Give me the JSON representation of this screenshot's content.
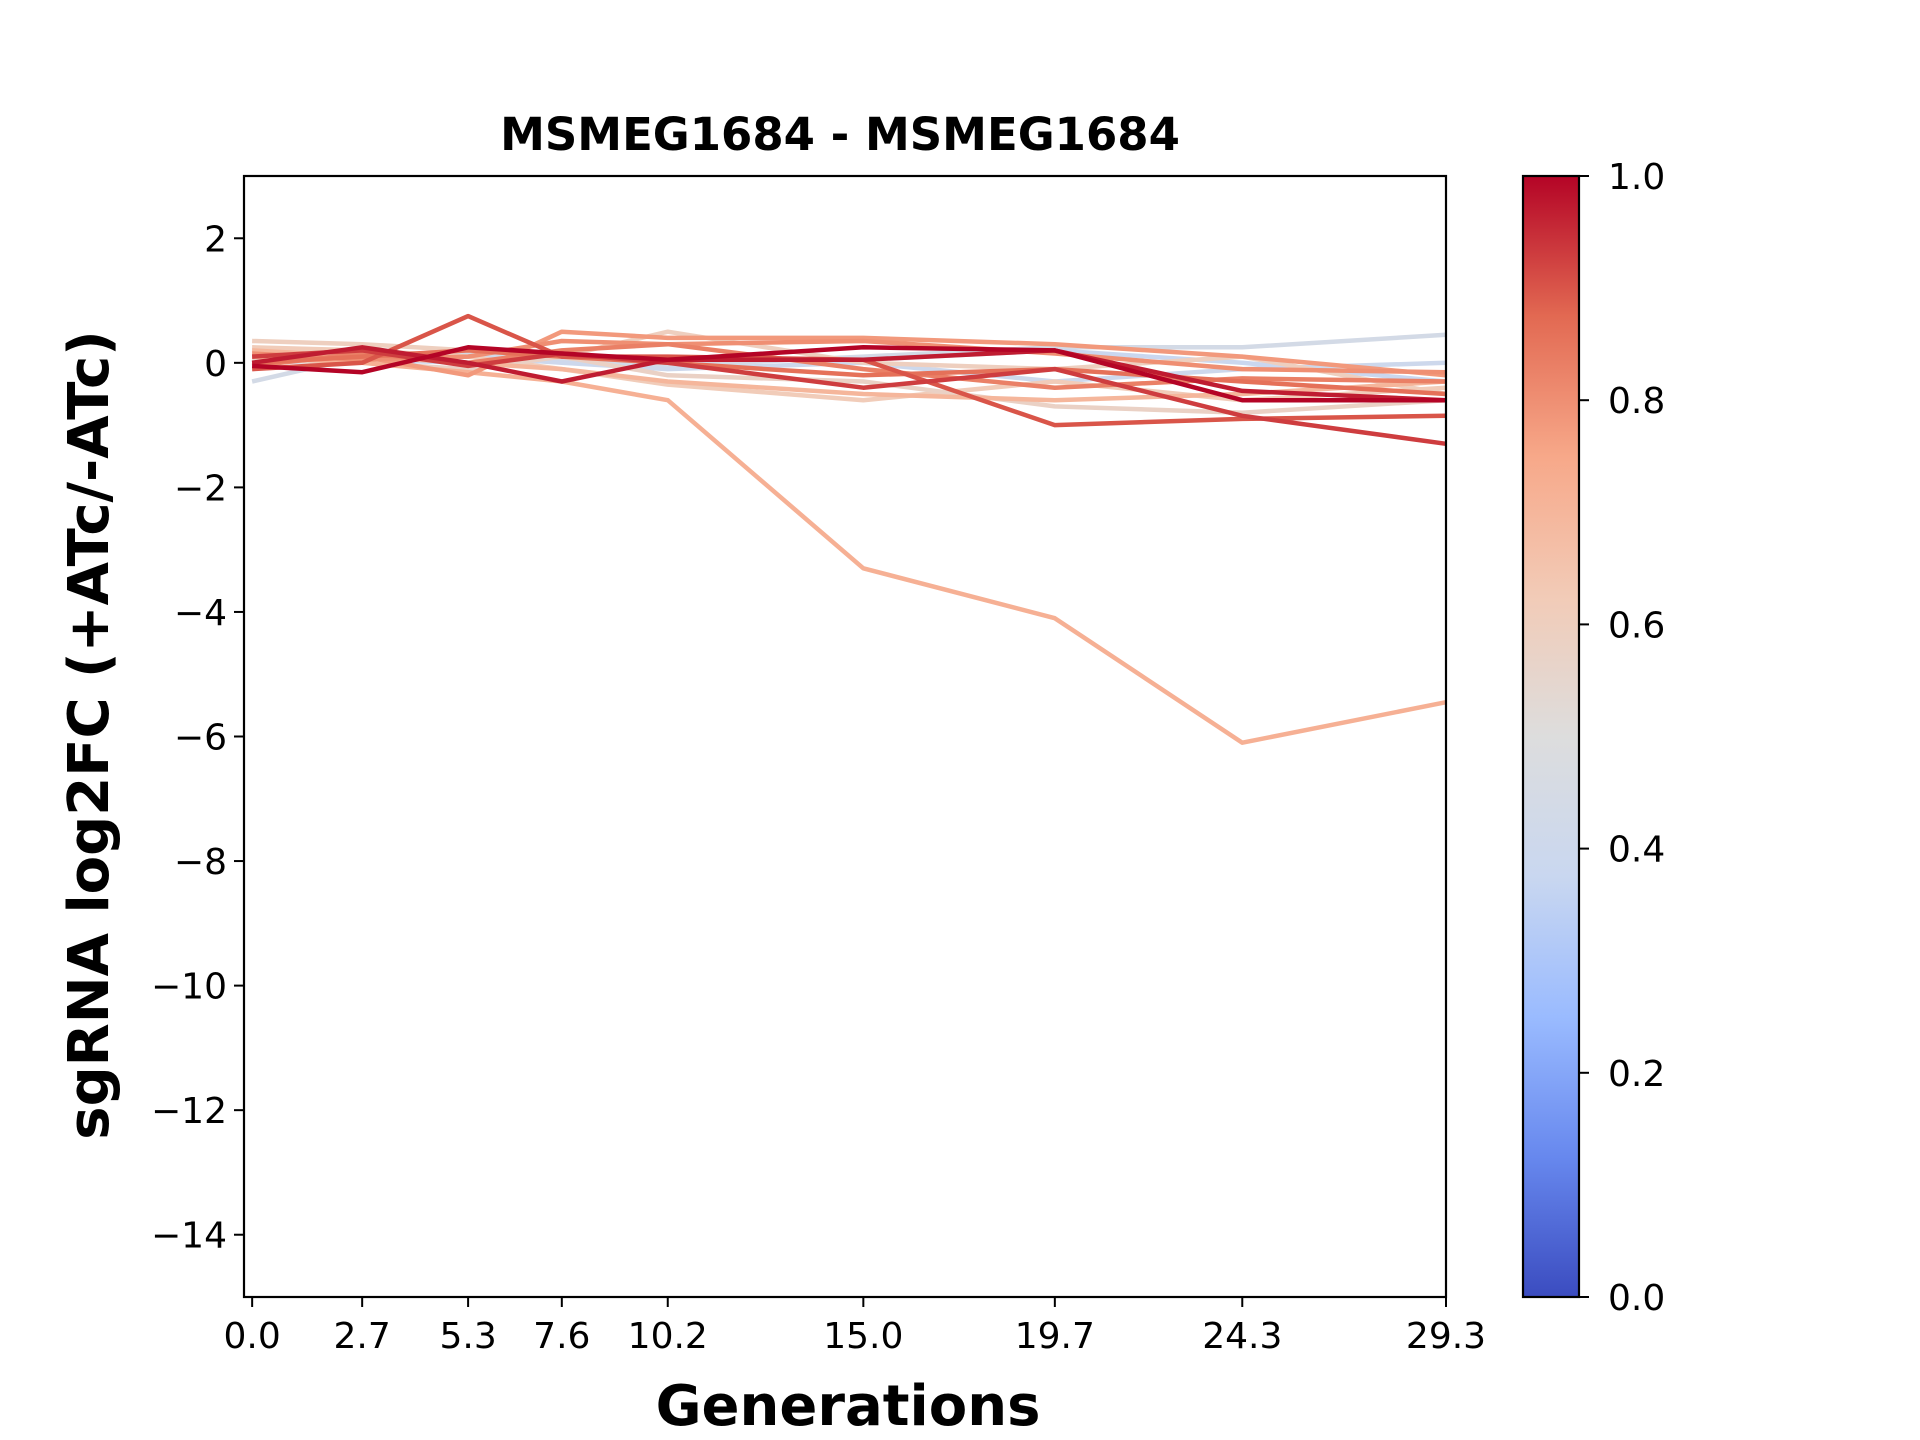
{
  "chart_data": {
    "type": "line",
    "title": "MSMEG1684 - MSMEG1684",
    "xlabel": "Generations",
    "ylabel": "sgRNA log2FC (+ATc/-ATc)",
    "x": [
      0.0,
      2.7,
      5.3,
      7.6,
      10.2,
      15.0,
      19.7,
      24.3,
      29.3
    ],
    "x_tick_labels": [
      "0.0",
      "2.7",
      "5.3",
      "7.6",
      "10.2",
      "15.0",
      "19.7",
      "24.3",
      "29.3"
    ],
    "xlim": [
      -0.2,
      29.3
    ],
    "ylim": [
      -15,
      3
    ],
    "y_ticks": [
      2,
      0,
      -2,
      -4,
      -6,
      -8,
      -10,
      -12,
      -14
    ],
    "y_tick_labels": [
      "2",
      "0",
      "−2",
      "−4",
      "−6",
      "−8",
      "−10",
      "−12",
      "−14"
    ],
    "grid": false,
    "colorbar": {
      "colormap": "coolwarm",
      "range": [
        0.0,
        1.0
      ],
      "ticks": [
        0.0,
        0.2,
        0.4,
        0.6,
        0.8,
        1.0
      ],
      "tick_labels": [
        "0.0",
        "0.2",
        "0.4",
        "0.6",
        "0.8",
        "1.0"
      ],
      "stops": [
        "#3b4cc0",
        "#6788ee",
        "#9abbff",
        "#c9d7f0",
        "#dddddd",
        "#f2cbb7",
        "#f7a889",
        "#e26952",
        "#b40426"
      ]
    },
    "series": [
      {
        "color_value": 0.44,
        "values": [
          -0.3,
          0.1,
          0.15,
          0.05,
          -0.05,
          0.1,
          0.25,
          0.25,
          0.45
        ]
      },
      {
        "color_value": 0.4,
        "values": [
          0.1,
          0.05,
          0.1,
          0.0,
          -0.1,
          0.0,
          -0.3,
          -0.1,
          0.0
        ]
      },
      {
        "color_value": 0.38,
        "values": [
          0.0,
          0.05,
          0.0,
          0.1,
          0.05,
          0.05,
          0.2,
          0.0,
          -0.3
        ]
      },
      {
        "color_value": 0.6,
        "values": [
          0.35,
          0.3,
          0.2,
          0.1,
          0.5,
          0.0,
          -0.1,
          0.1,
          -0.5
        ]
      },
      {
        "color_value": 0.62,
        "values": [
          0.25,
          0.2,
          0.1,
          -0.1,
          -0.35,
          -0.6,
          -0.3,
          -0.6,
          -0.4
        ]
      },
      {
        "color_value": 0.58,
        "values": [
          0.05,
          0.0,
          -0.1,
          0.1,
          -0.2,
          -0.3,
          -0.7,
          -0.8,
          -0.6
        ]
      },
      {
        "color_value": 0.7,
        "values": [
          0.2,
          0.1,
          0.0,
          -0.1,
          -0.3,
          -0.5,
          -0.6,
          -0.5,
          -0.3
        ]
      },
      {
        "color_value": 0.72,
        "values": [
          0.1,
          0.0,
          -0.15,
          -0.3,
          -0.6,
          -3.3,
          -4.1,
          -6.1,
          -5.45
        ]
      },
      {
        "color_value": 0.78,
        "values": [
          0.0,
          0.1,
          -0.2,
          0.5,
          0.4,
          0.4,
          0.3,
          0.1,
          -0.2
        ]
      },
      {
        "color_value": 0.8,
        "values": [
          0.15,
          0.05,
          0.1,
          0.35,
          0.3,
          0.35,
          0.15,
          -0.1,
          -0.15
        ]
      },
      {
        "color_value": 0.83,
        "values": [
          -0.05,
          0.15,
          0.0,
          0.2,
          0.3,
          -0.1,
          -0.4,
          -0.25,
          -0.3
        ]
      },
      {
        "color_value": 0.86,
        "values": [
          0.0,
          0.1,
          0.2,
          0.1,
          0.0,
          -0.2,
          -0.1,
          -0.3,
          -0.5
        ]
      },
      {
        "color_value": 0.9,
        "values": [
          -0.1,
          0.0,
          0.75,
          0.1,
          0.1,
          0.05,
          -1.0,
          -0.9,
          -0.85
        ]
      },
      {
        "color_value": 0.93,
        "values": [
          0.1,
          0.2,
          -0.05,
          0.15,
          0.0,
          -0.4,
          -0.1,
          -0.85,
          -1.3
        ]
      },
      {
        "color_value": 0.97,
        "values": [
          0.0,
          0.25,
          0.0,
          -0.3,
          0.05,
          0.05,
          0.2,
          -0.45,
          -0.6
        ]
      },
      {
        "color_value": 1.0,
        "values": [
          -0.05,
          -0.15,
          0.25,
          0.15,
          0.05,
          0.25,
          0.2,
          -0.6,
          -0.6
        ]
      }
    ]
  }
}
